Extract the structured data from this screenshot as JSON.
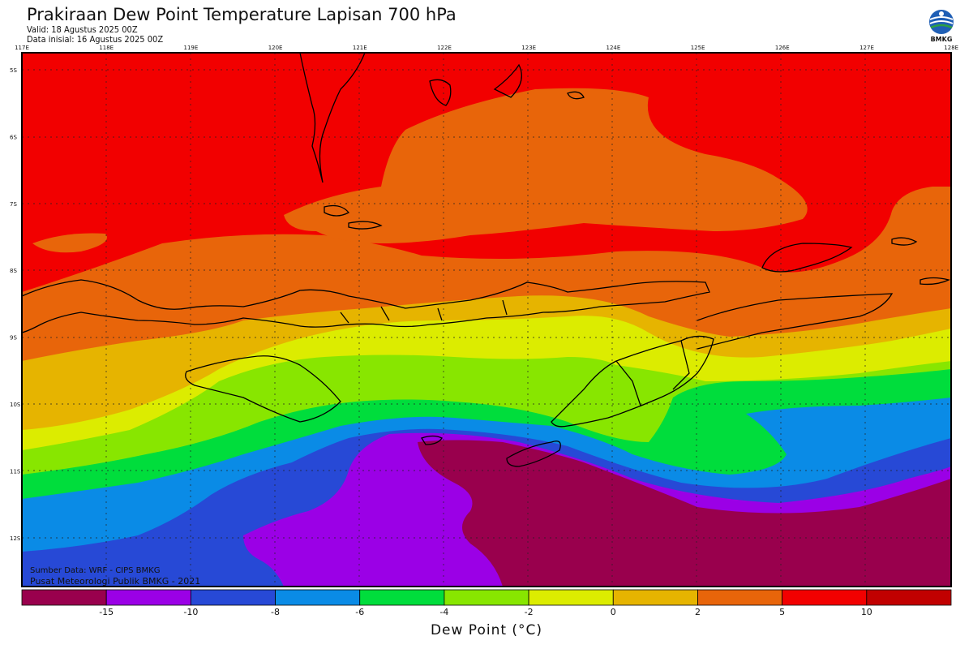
{
  "header": {
    "title": "Prakiraan Dew Point Temperature Lapisan 700 hPa",
    "valid": "Valid: 18 Agustus 2025 00Z",
    "init": "Data inisial: 16 Agustus 2025 00Z",
    "logo_text": "BMKG"
  },
  "map": {
    "lon_labels": [
      "117E",
      "118E",
      "119E",
      "120E",
      "121E",
      "122E",
      "123E",
      "124E",
      "125E",
      "126E",
      "127E",
      "128E"
    ],
    "lat_labels": [
      "5S",
      "6S",
      "7S",
      "8S",
      "9S",
      "10S",
      "11S",
      "12S"
    ],
    "field_colors": {
      "c_lt15": "#99004d",
      "c_m15": "#9b00e6",
      "c_m10": "#2749d6",
      "c_m8": "#0a8be6",
      "c_m6": "#00dd3c",
      "c_m4": "#88e600",
      "c_m2": "#dcec00",
      "c_0": "#e6b400",
      "c_2": "#e8650a",
      "c_5": "#f20000",
      "c_10": "#c10000"
    }
  },
  "footer": {
    "source1": "Sumber Data: WRF - CIPS BMKG",
    "source2": "Pusat Meteorologi Publik BMKG - 2021"
  },
  "colorbar": {
    "title": "Dew Point (°C)",
    "colors": [
      "#99004d",
      "#9b00e6",
      "#2749d6",
      "#0a8be6",
      "#00dd3c",
      "#88e600",
      "#dcec00",
      "#e6b400",
      "#e8650a",
      "#f20000",
      "#c10000"
    ],
    "labels": [
      "-15",
      "-10",
      "-8",
      "-6",
      "-4",
      "-2",
      "0",
      "2",
      "5",
      "10"
    ]
  }
}
